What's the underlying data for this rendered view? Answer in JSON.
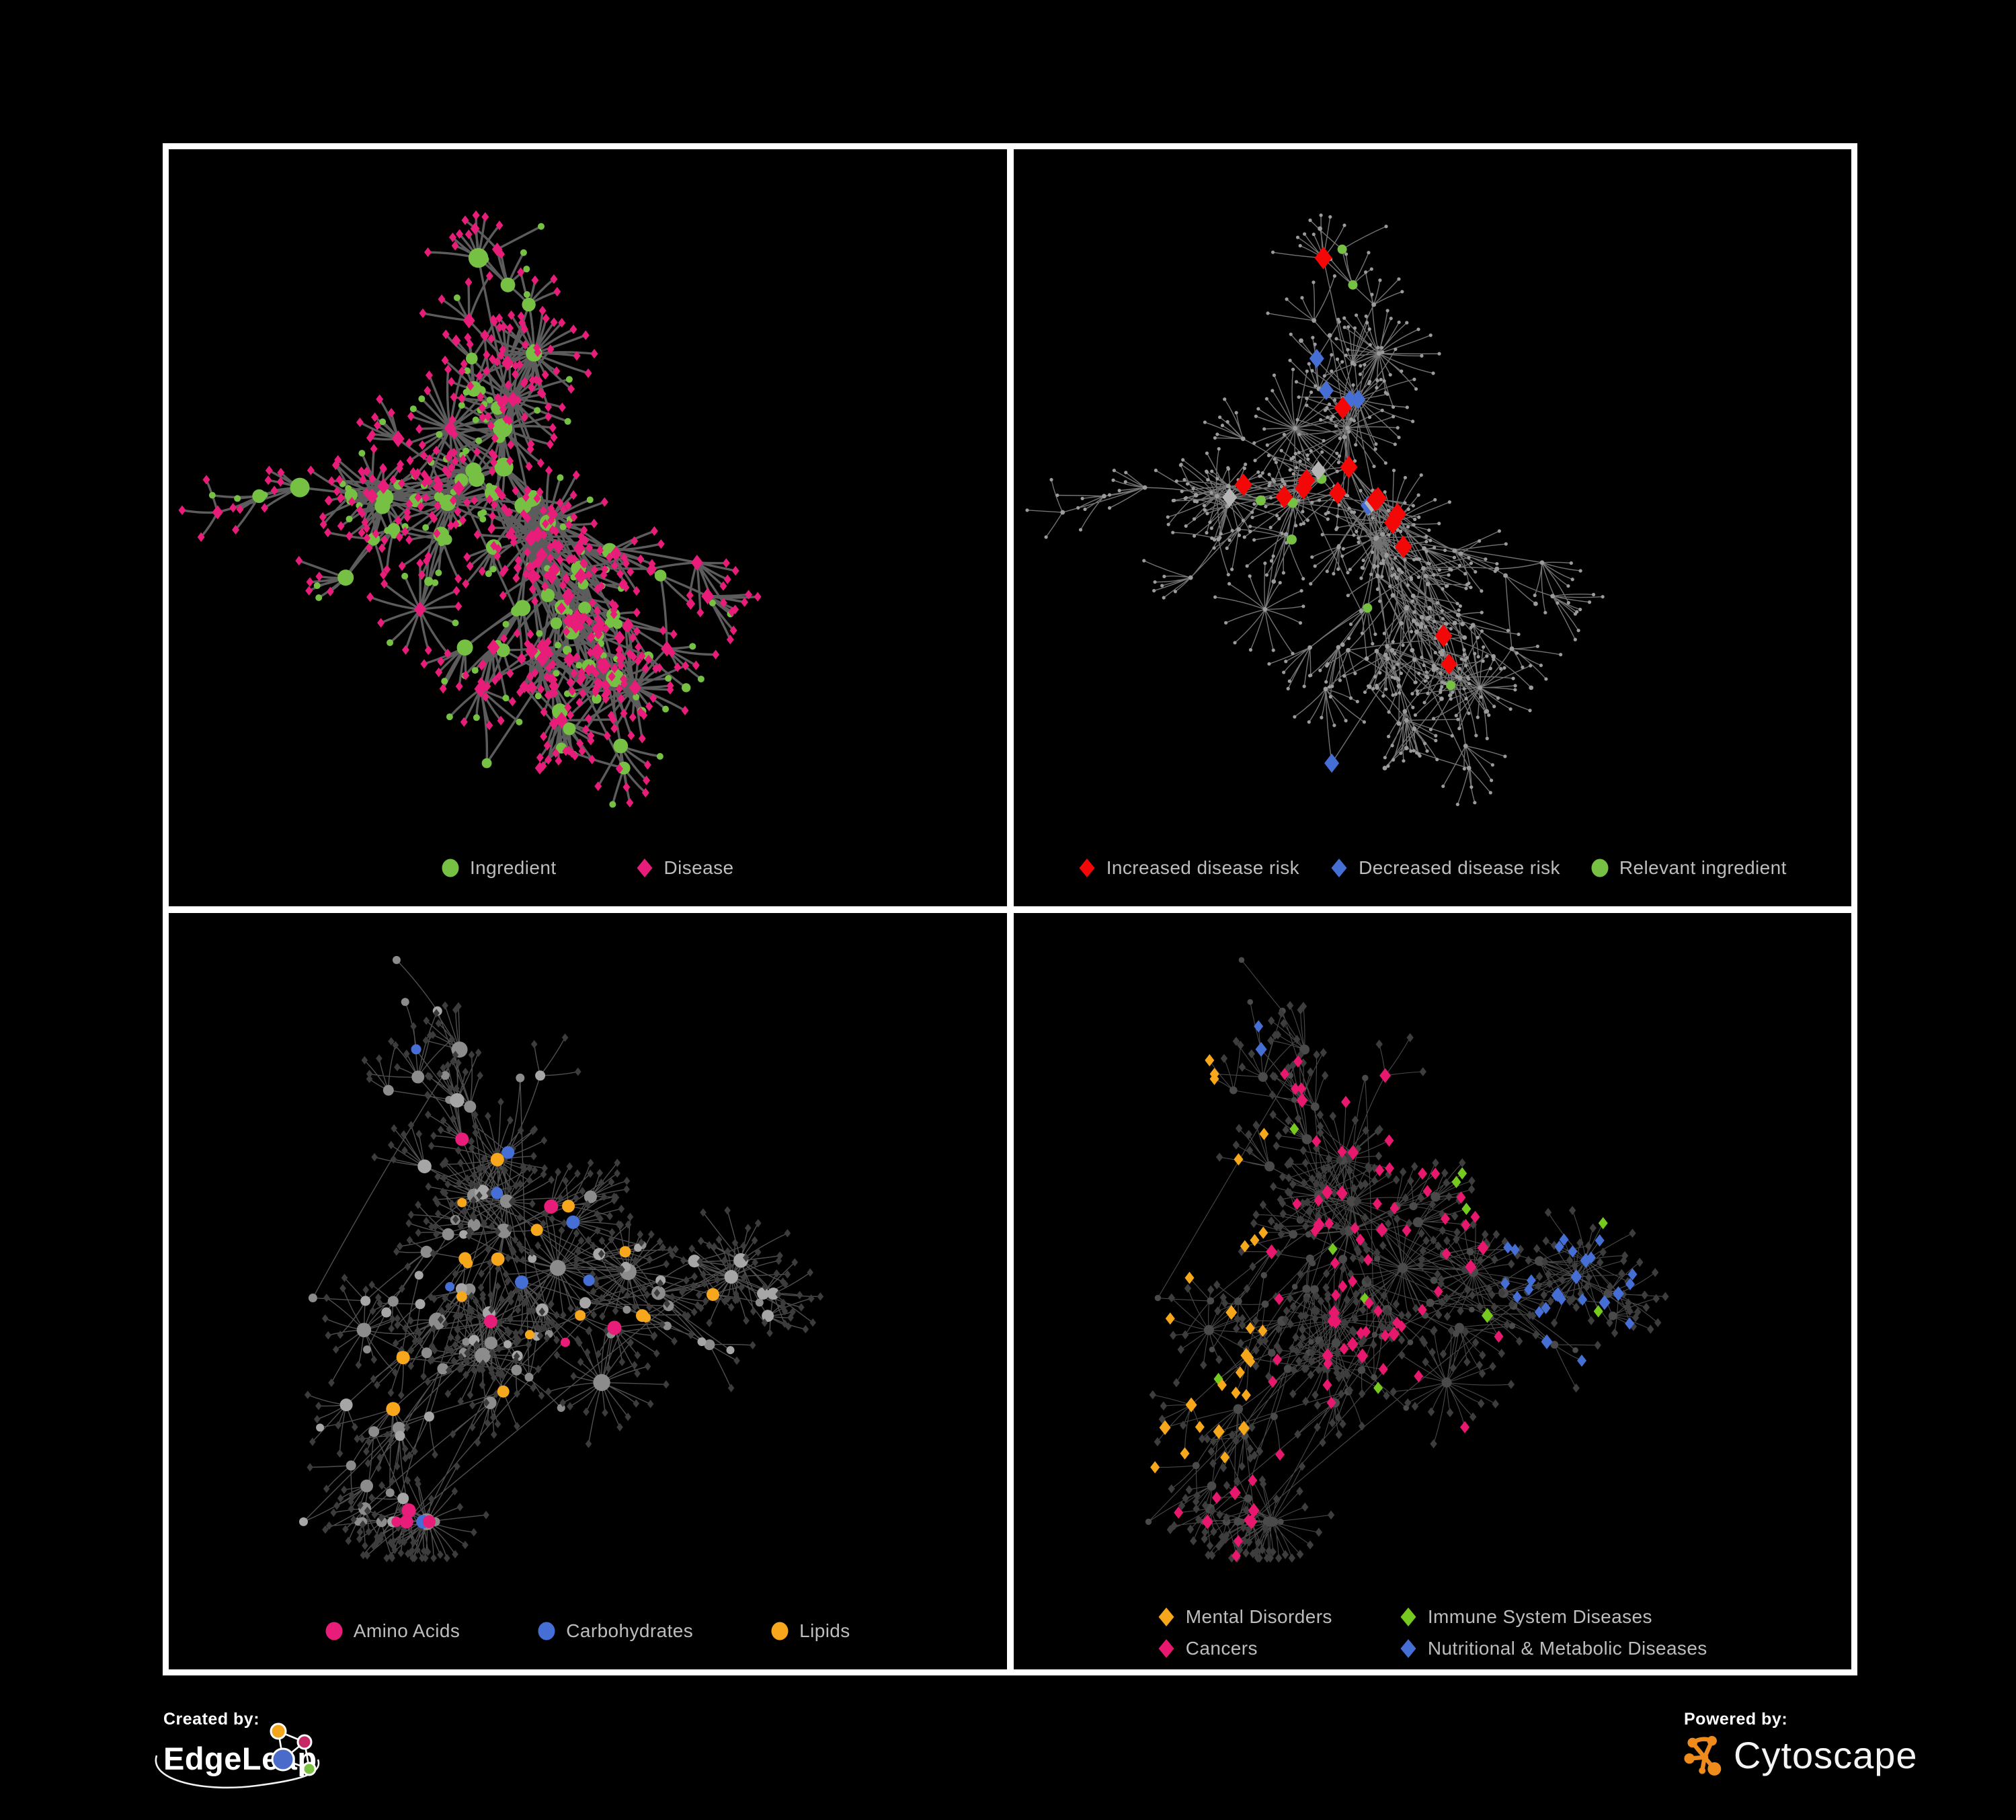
{
  "panels": [
    {
      "name": "ingredient-disease-network",
      "legend_layout": "row",
      "legend": [
        {
          "label": "Ingredient",
          "shape": "circle",
          "color": "#76C043"
        },
        {
          "label": "Disease",
          "shape": "diamond",
          "color": "#E81D7A"
        }
      ],
      "network": {
        "style": "p1",
        "graph_seed": 1337,
        "style_seed": 101,
        "bottom_pad": 135,
        "edge": {
          "color": "#6C6C6C",
          "width": 3.4,
          "opacity": 0.85
        },
        "palette": {
          "green": "#76C043",
          "pink": "#E81D7A"
        }
      }
    },
    {
      "name": "disease-risk-network",
      "legend_layout": "row",
      "legend": [
        {
          "label": "Increased disease risk",
          "shape": "diamond",
          "color": "#F40707"
        },
        {
          "label": "Decreased disease risk",
          "shape": "diamond",
          "color": "#466FD5"
        },
        {
          "label": "Relevant ingredient",
          "shape": "circle",
          "color": "#76C043"
        }
      ],
      "network": {
        "style": "p2",
        "graph_seed": 1337,
        "style_seed": 202,
        "bottom_pad": 135,
        "edge": {
          "color": "#8F8F8F",
          "width": 1.4,
          "opacity": 0.8
        },
        "palette": {
          "dot": "#9B9B9B",
          "red": "#F40707",
          "blue": "#466FD5",
          "gray": "#B5B5B5",
          "green": "#76C043"
        }
      }
    },
    {
      "name": "nutrient-class-network",
      "legend_layout": "row",
      "legend": [
        {
          "label": "Amino Acids",
          "shape": "circle",
          "color": "#E81D7A"
        },
        {
          "label": "Carbohydrates",
          "shape": "circle",
          "color": "#466FD5"
        },
        {
          "label": "Lipids",
          "shape": "circle",
          "color": "#F7A71C"
        }
      ],
      "network": {
        "style": "p3",
        "graph_seed": 4242,
        "style_seed": 303,
        "bottom_pad": 150,
        "edge": {
          "color": "#9E9E9E",
          "width": 1.4,
          "opacity": 0.5
        },
        "palette": {
          "leaf": "#3C3C3C",
          "hubA": "#A6A6A6",
          "hubB": "#8C8C8C",
          "orange": "#F7A71C",
          "pink": "#E81D7A",
          "blue": "#466FD5"
        }
      }
    },
    {
      "name": "disease-class-network",
      "legend_layout": "grid",
      "legend": [
        {
          "label": "Mental Disorders",
          "shape": "diamond",
          "color": "#F7A71C"
        },
        {
          "label": "Immune System Diseases",
          "shape": "diamond",
          "color": "#76C91F"
        },
        {
          "label": "Cancers",
          "shape": "diamond",
          "color": "#E8186E"
        },
        {
          "label": "Nutritional & Metabolic Diseases",
          "shape": "diamond",
          "color": "#466FD5"
        }
      ],
      "network": {
        "style": "p4",
        "graph_seed": 4242,
        "style_seed": 404,
        "bottom_pad": 150,
        "edge": {
          "color": "#ABABAB",
          "width": 1.1,
          "opacity": 0.42
        },
        "palette": {
          "leaf": "#3D3D3D",
          "hub": "#4A4A4A",
          "orange": "#F7A71C",
          "pink": "#E8186E",
          "blue": "#466FD5",
          "green": "#76C91F"
        }
      }
    }
  ],
  "footer": {
    "created_by_label": "Created by:",
    "created_by_brand": "EdgeLeap",
    "powered_by_label": "Powered by:",
    "powered_by_brand": "Cytoscape",
    "edgeleap_colors": {
      "orange": "#F2A61B",
      "crimson": "#C52767",
      "blue": "#4A6BC9",
      "green": "#7CC142"
    },
    "cytoscape_color": "#EF8B1D"
  }
}
